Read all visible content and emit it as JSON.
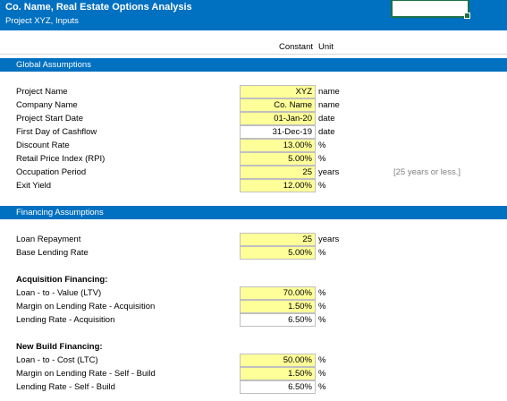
{
  "header": {
    "title": "Co. Name, Real Estate Options Analysis",
    "subtitle": "Project XYZ, Inputs"
  },
  "columns": {
    "value": "Constant",
    "unit": "Unit"
  },
  "sections": [
    {
      "title": "Global Assumptions",
      "groups": [
        {
          "rows": [
            {
              "label": "Project Name",
              "value": "XYZ",
              "unit": "name",
              "fill": "#ffff99"
            },
            {
              "label": "Company Name",
              "value": "Co. Name",
              "unit": "name",
              "fill": "#ffff99"
            },
            {
              "label": "Project Start Date",
              "value": "01-Jan-20",
              "unit": "date",
              "fill": "#ffff99"
            },
            {
              "label": "First Day of Cashflow",
              "value": "31-Dec-19",
              "unit": "date",
              "fill": "#ffffff"
            },
            {
              "label": "Discount Rate",
              "value": "13.00%",
              "unit": "%",
              "fill": "#ffff99"
            },
            {
              "label": "Retail Price Index (RPI)",
              "value": "5.00%",
              "unit": "%",
              "fill": "#ffff99"
            },
            {
              "label": "Occupation Period",
              "value": "25",
              "unit": "years",
              "fill": "#ffff99",
              "note": "[25 years or less.]"
            },
            {
              "label": "Exit Yield",
              "value": "12.00%",
              "unit": "%",
              "fill": "#ffff99"
            }
          ]
        }
      ]
    },
    {
      "title": "Financing Assumptions",
      "groups": [
        {
          "rows": [
            {
              "label": "Loan Repayment",
              "value": "25",
              "unit": "years",
              "fill": "#ffff99"
            },
            {
              "label": "Base Lending Rate",
              "value": "5.00%",
              "unit": "%",
              "fill": "#ffff99"
            }
          ]
        },
        {
          "heading": "Acquisition Financing:",
          "rows": [
            {
              "label": "Loan - to - Value (LTV)",
              "value": "70.00%",
              "unit": "%",
              "fill": "#ffff99"
            },
            {
              "label": "Margin on Lending Rate - Acquisition",
              "value": "1.50%",
              "unit": "%",
              "fill": "#ffff99"
            },
            {
              "label": "Lending Rate - Acquisition",
              "value": "6.50%",
              "unit": "%",
              "fill": "#ffffff"
            }
          ]
        },
        {
          "heading": "New Build Financing:",
          "rows": [
            {
              "label": "Loan - to - Cost (LTC)",
              "value": "50.00%",
              "unit": "%",
              "fill": "#ffff99"
            },
            {
              "label": "Margin on Lending Rate - Self - Build",
              "value": "1.50%",
              "unit": "%",
              "fill": "#ffff99"
            },
            {
              "label": "Lending Rate - Self - Build",
              "value": "6.50%",
              "unit": "%",
              "fill": "#ffffff"
            }
          ]
        }
      ]
    }
  ]
}
